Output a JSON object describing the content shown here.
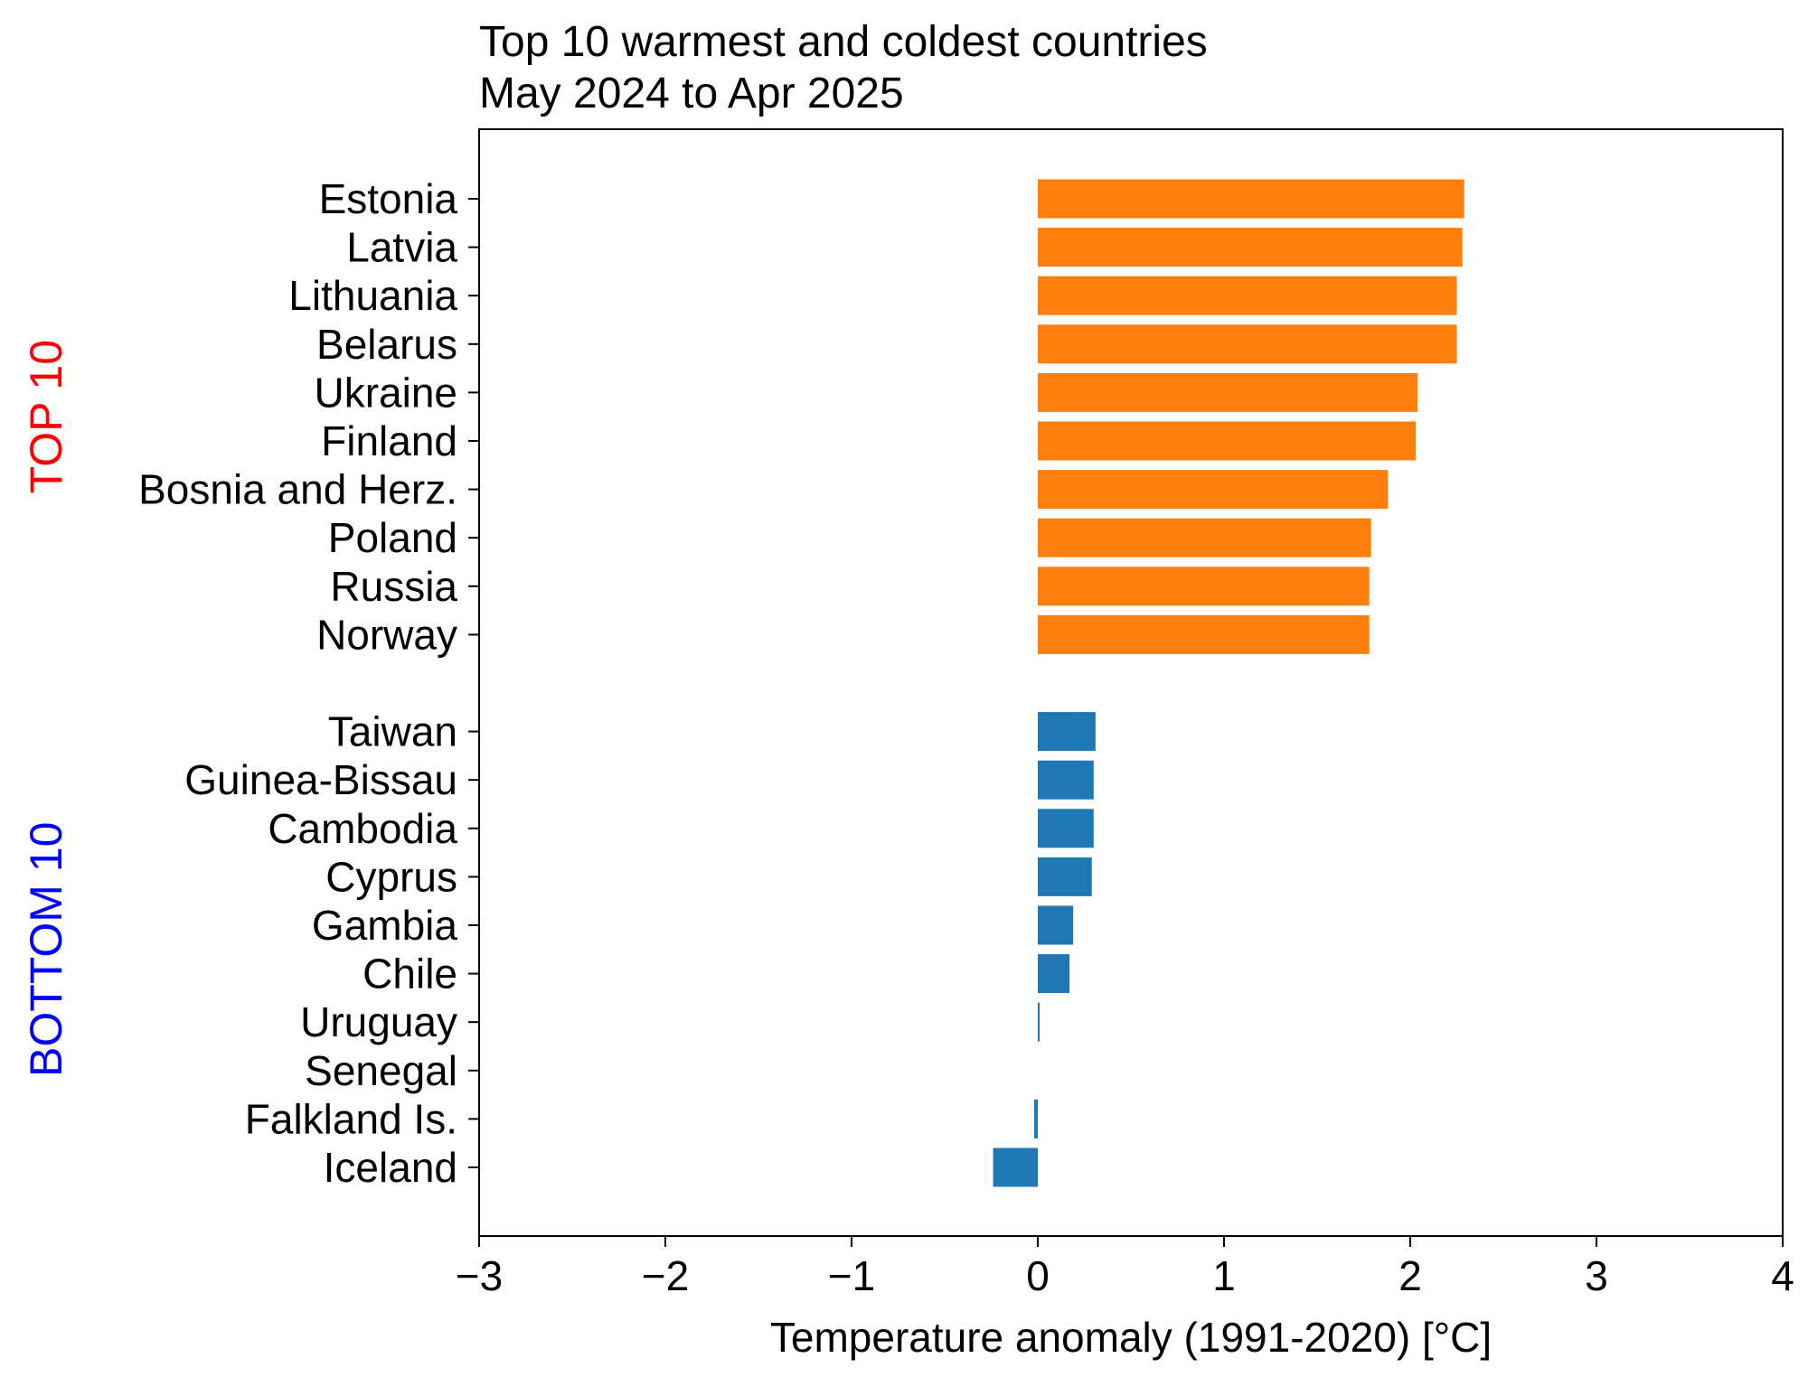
{
  "chart_data": {
    "type": "bar",
    "orientation": "horizontal",
    "title_lines": [
      "Top 10 warmest and coldest countries",
      "May 2024 to Apr 2025"
    ],
    "xlabel": "Temperature anomaly (1991-2020) [°C]",
    "xlim": [
      -3,
      4
    ],
    "xticks": [
      -3,
      -2,
      -1,
      0,
      1,
      2,
      3,
      4
    ],
    "xtick_labels": [
      "−3",
      "−2",
      "−1",
      "0",
      "1",
      "2",
      "3",
      "4"
    ],
    "grid": false,
    "groups": [
      {
        "label": "TOP 10",
        "label_color": "#ff0000",
        "bar_color": "#ff7f0e",
        "categories": [
          "Estonia",
          "Latvia",
          "Lithuania",
          "Belarus",
          "Ukraine",
          "Finland",
          "Bosnia and Herz.",
          "Poland",
          "Russia",
          "Norway"
        ],
        "values": [
          2.29,
          2.28,
          2.25,
          2.25,
          2.04,
          2.03,
          1.88,
          1.79,
          1.78,
          1.78
        ]
      },
      {
        "label": "BOTTOM 10",
        "label_color": "#0000ff",
        "bar_color": "#1f77b4",
        "categories": [
          "Taiwan",
          "Guinea-Bissau",
          "Cambodia",
          "Cyprus",
          "Gambia",
          "Chile",
          "Uruguay",
          "Senegal",
          "Falkland Is.",
          "Iceland"
        ],
        "values": [
          0.31,
          0.3,
          0.3,
          0.29,
          0.19,
          0.17,
          0.01,
          0.0,
          -0.02,
          -0.24
        ]
      }
    ]
  }
}
